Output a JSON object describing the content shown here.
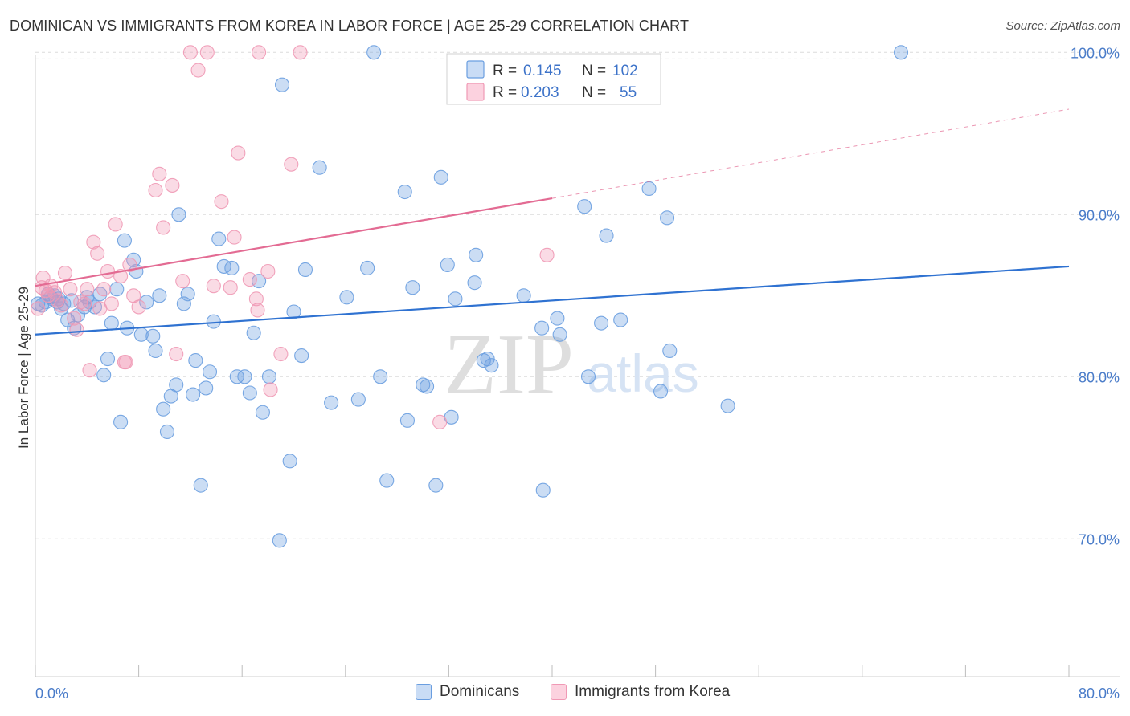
{
  "header": {
    "title": "DOMINICAN VS IMMIGRANTS FROM KOREA IN LABOR FORCE | AGE 25-29 CORRELATION CHART",
    "source": "Source: ZipAtlas.com"
  },
  "watermark": {
    "zip": "ZIP",
    "atlas": "atlas"
  },
  "legend": {
    "rows": [
      {
        "r_label": "R =",
        "r_value": "0.145",
        "n_label": "N =",
        "n_value": "102"
      },
      {
        "r_label": "R =",
        "r_value": "0.203",
        "n_label": "N =",
        "n_value": "55"
      }
    ]
  },
  "bottom_legend": {
    "series1": "Dominicans",
    "series2": "Immigrants from Korea"
  },
  "chart_data": {
    "type": "scatter",
    "title": "DOMINICAN VS IMMIGRANTS FROM KOREA IN LABOR FORCE | AGE 25-29 CORRELATION CHART",
    "xlabel": "",
    "ylabel": "In Labor Force | Age 25-29",
    "xlim": [
      0,
      80
    ],
    "ylim": [
      61.5,
      101.5
    ],
    "x_tick_labels": [
      "0.0%",
      "80.0%"
    ],
    "y_ticks": [
      70,
      80,
      90,
      100
    ],
    "y_tick_labels": [
      "70.0%",
      "80.0%",
      "90.0%",
      "100.0%"
    ],
    "grid": true,
    "legend_position": "top-center",
    "colors": {
      "dominicans": "#6a9ee0",
      "korea": "#f099b5",
      "dominicans_line": "#2f72d1",
      "korea_line": "#e36b93",
      "tick_label": "#4a7cc9"
    },
    "series": [
      {
        "name": "Dominicans",
        "r": 0.145,
        "n": 102,
        "trend": {
          "x": [
            0,
            80
          ],
          "y": [
            82.6,
            86.8
          ]
        },
        "points": [
          [
            0.5,
            84.4
          ],
          [
            0.8,
            84.6
          ],
          [
            1.0,
            85.1
          ],
          [
            1.2,
            84.9
          ],
          [
            1.5,
            85.0
          ],
          [
            1.8,
            84.8
          ],
          [
            2.0,
            84.2
          ],
          [
            2.5,
            83.5
          ],
          [
            2.8,
            84.7
          ],
          [
            3.0,
            83.0
          ],
          [
            3.3,
            83.8
          ],
          [
            3.8,
            84.3
          ],
          [
            4.2,
            84.6
          ],
          [
            4.6,
            84.3
          ],
          [
            5.0,
            85.1
          ],
          [
            5.3,
            80.1
          ],
          [
            5.6,
            81.1
          ],
          [
            5.9,
            83.3
          ],
          [
            6.3,
            85.4
          ],
          [
            6.6,
            77.2
          ],
          [
            6.9,
            88.4
          ],
          [
            7.1,
            83.0
          ],
          [
            7.6,
            87.2
          ],
          [
            7.8,
            86.5
          ],
          [
            8.2,
            82.6
          ],
          [
            8.6,
            84.6
          ],
          [
            9.1,
            82.5
          ],
          [
            9.3,
            81.6
          ],
          [
            9.6,
            85.0
          ],
          [
            9.9,
            78.0
          ],
          [
            10.2,
            76.6
          ],
          [
            10.5,
            78.8
          ],
          [
            10.9,
            79.5
          ],
          [
            11.1,
            90.0
          ],
          [
            11.5,
            84.5
          ],
          [
            11.8,
            85.1
          ],
          [
            12.2,
            78.9
          ],
          [
            12.4,
            81.0
          ],
          [
            12.8,
            73.3
          ],
          [
            13.2,
            79.3
          ],
          [
            13.5,
            80.3
          ],
          [
            13.8,
            83.4
          ],
          [
            14.2,
            88.5
          ],
          [
            14.6,
            86.8
          ],
          [
            15.2,
            86.7
          ],
          [
            15.6,
            80.0
          ],
          [
            16.2,
            80.0
          ],
          [
            16.6,
            79.0
          ],
          [
            16.9,
            82.7
          ],
          [
            17.3,
            85.9
          ],
          [
            17.6,
            77.8
          ],
          [
            18.1,
            80.0
          ],
          [
            18.9,
            69.9
          ],
          [
            19.7,
            74.8
          ],
          [
            20.0,
            84.0
          ],
          [
            20.6,
            81.3
          ],
          [
            20.9,
            86.6
          ],
          [
            22.0,
            92.9
          ],
          [
            22.9,
            78.4
          ],
          [
            24.1,
            84.9
          ],
          [
            25.0,
            78.6
          ],
          [
            25.7,
            86.7
          ],
          [
            26.2,
            100.0
          ],
          [
            26.7,
            80.0
          ],
          [
            27.2,
            73.6
          ],
          [
            28.6,
            91.4
          ],
          [
            28.8,
            77.3
          ],
          [
            29.2,
            85.5
          ],
          [
            30.0,
            79.5
          ],
          [
            30.3,
            79.4
          ],
          [
            31.0,
            73.3
          ],
          [
            31.4,
            92.3
          ],
          [
            31.9,
            86.9
          ],
          [
            32.2,
            77.5
          ],
          [
            32.5,
            84.8
          ],
          [
            34.0,
            85.8
          ],
          [
            34.1,
            87.5
          ],
          [
            34.7,
            81.0
          ],
          [
            35.0,
            81.1
          ],
          [
            35.3,
            80.7
          ],
          [
            37.8,
            85.0
          ],
          [
            39.2,
            83.0
          ],
          [
            39.3,
            73.0
          ],
          [
            40.4,
            83.6
          ],
          [
            40.6,
            82.6
          ],
          [
            42.5,
            90.5
          ],
          [
            42.8,
            80.0
          ],
          [
            43.8,
            83.3
          ],
          [
            44.2,
            88.7
          ],
          [
            45.3,
            83.5
          ],
          [
            47.5,
            91.6
          ],
          [
            48.4,
            79.1
          ],
          [
            48.9,
            89.8
          ],
          [
            49.1,
            81.6
          ],
          [
            53.6,
            78.2
          ],
          [
            67.0,
            100.0
          ],
          [
            19.1,
            98.0
          ],
          [
            0.2,
            84.5
          ],
          [
            1.7,
            84.6
          ],
          [
            4.0,
            84.9
          ],
          [
            2.2,
            84.5
          ],
          [
            1.3,
            84.8
          ]
        ]
      },
      {
        "name": "Immigrants from Korea",
        "r": 0.203,
        "n": 55,
        "trend": {
          "x": [
            0,
            40
          ],
          "y": [
            85.6,
            91.0
          ]
        },
        "trend_dashed": {
          "x": [
            40,
            80
          ],
          "y": [
            91.0,
            96.5
          ]
        },
        "points": [
          [
            0.2,
            84.2
          ],
          [
            0.5,
            85.5
          ],
          [
            0.6,
            86.1
          ],
          [
            0.8,
            85.3
          ],
          [
            1.2,
            85.6
          ],
          [
            1.5,
            85.2
          ],
          [
            1.7,
            84.7
          ],
          [
            2.0,
            84.4
          ],
          [
            2.3,
            86.4
          ],
          [
            2.7,
            85.4
          ],
          [
            3.0,
            83.6
          ],
          [
            3.2,
            82.9
          ],
          [
            3.5,
            84.6
          ],
          [
            4.0,
            85.4
          ],
          [
            4.2,
            80.4
          ],
          [
            4.5,
            88.3
          ],
          [
            4.8,
            87.6
          ],
          [
            5.0,
            84.2
          ],
          [
            5.3,
            85.4
          ],
          [
            5.6,
            86.5
          ],
          [
            5.9,
            84.5
          ],
          [
            6.2,
            89.4
          ],
          [
            6.6,
            86.2
          ],
          [
            7.0,
            80.9
          ],
          [
            7.3,
            86.9
          ],
          [
            7.6,
            85.0
          ],
          [
            8.0,
            84.3
          ],
          [
            9.3,
            91.5
          ],
          [
            9.6,
            92.5
          ],
          [
            9.9,
            89.2
          ],
          [
            10.6,
            91.8
          ],
          [
            10.9,
            81.4
          ],
          [
            11.4,
            85.9
          ],
          [
            12.0,
            100.0
          ],
          [
            12.6,
            98.9
          ],
          [
            13.3,
            100.0
          ],
          [
            13.8,
            85.6
          ],
          [
            14.4,
            90.8
          ],
          [
            15.1,
            85.5
          ],
          [
            15.4,
            88.6
          ],
          [
            15.7,
            93.8
          ],
          [
            16.6,
            86.0
          ],
          [
            17.1,
            84.8
          ],
          [
            17.2,
            84.1
          ],
          [
            17.3,
            100.0
          ],
          [
            18.0,
            86.5
          ],
          [
            18.2,
            79.2
          ],
          [
            19.0,
            81.4
          ],
          [
            19.8,
            93.1
          ],
          [
            20.5,
            100.0
          ],
          [
            39.6,
            87.5
          ],
          [
            31.3,
            77.2
          ],
          [
            6.9,
            80.9
          ],
          [
            3.8,
            84.5
          ],
          [
            1.0,
            85.0
          ]
        ]
      }
    ]
  }
}
